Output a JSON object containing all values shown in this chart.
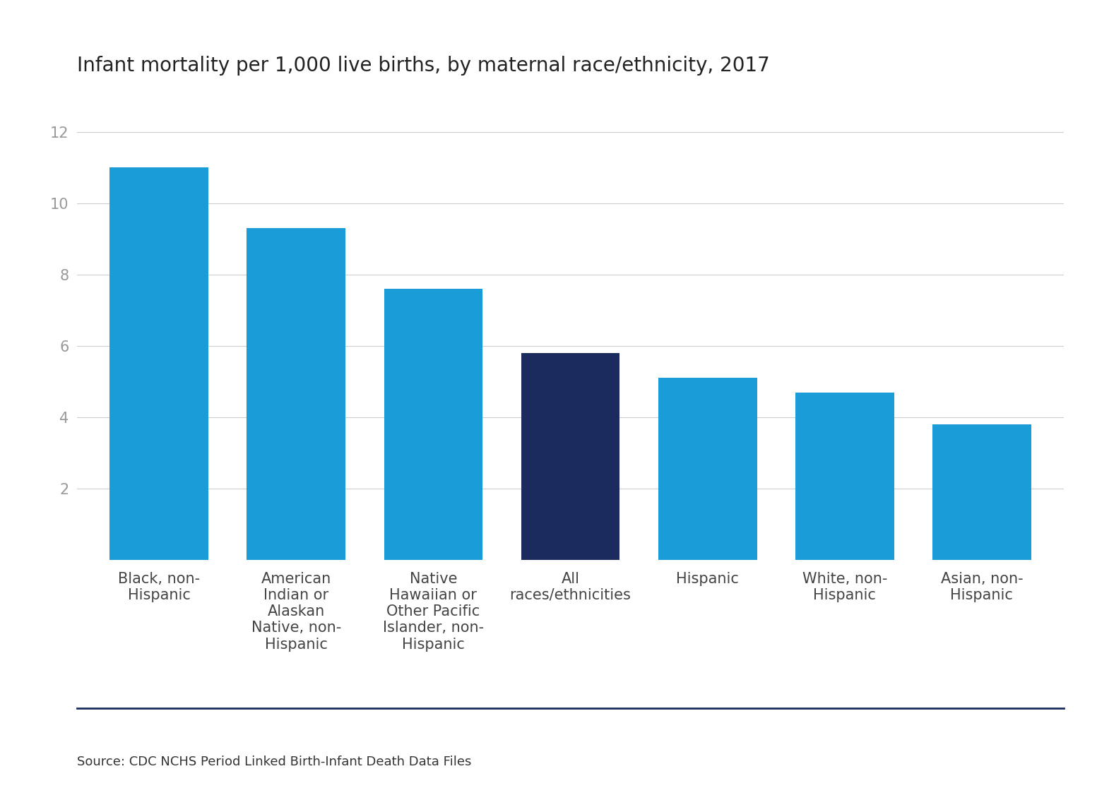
{
  "title": "Infant mortality per 1,000 live births, by maternal race/ethnicity, 2017",
  "categories": [
    "Black, non-\nHispanic",
    "American\nIndian or\nAlaskan\nNative, non-\nHispanic",
    "Native\nHawaiian or\nOther Pacific\nIslander, non-\nHispanic",
    "All\nraces/ethnicities",
    "Hispanic",
    "White, non-\nHispanic",
    "Asian, non-\nHispanic"
  ],
  "values": [
    11.0,
    9.3,
    7.6,
    5.8,
    5.1,
    4.7,
    3.8
  ],
  "bar_colors": [
    "#1a9cd8",
    "#1a9cd8",
    "#1a9cd8",
    "#1c2b5e",
    "#1a9cd8",
    "#1a9cd8",
    "#1a9cd8"
  ],
  "ylim": [
    0,
    13.0
  ],
  "yticks": [
    2,
    4,
    6,
    8,
    10,
    12
  ],
  "source_text": "Source: CDC NCHS Period Linked Birth-Infant Death Data Files",
  "background_color": "#ffffff",
  "title_fontsize": 20,
  "ytick_fontsize": 15,
  "xtick_fontsize": 15,
  "source_fontsize": 13,
  "separator_color": "#1c2b5e",
  "grid_color": "#cccccc",
  "ytick_color": "#999999",
  "xtick_color": "#444444"
}
